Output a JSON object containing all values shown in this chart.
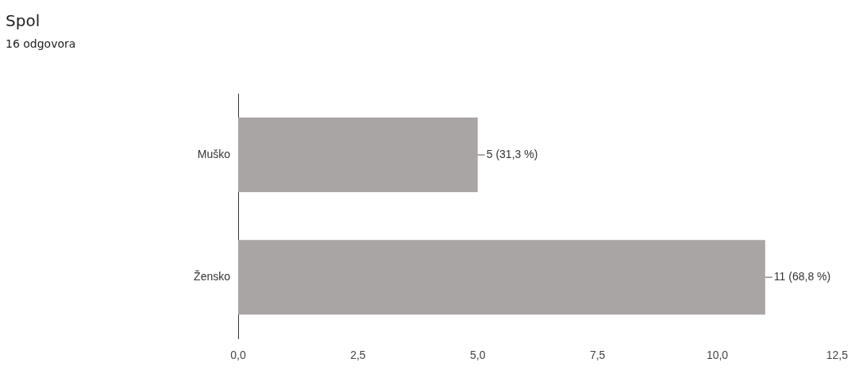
{
  "chart_data": {
    "type": "bar",
    "orientation": "horizontal",
    "title": "Spol",
    "subtitle": "16 odgovora",
    "categories": [
      "Muško",
      "Žensko"
    ],
    "values": [
      5,
      11
    ],
    "color": "#a9a5a5",
    "value_labels": [
      "5 (31,3 %)",
      "11 (68,8 %)"
    ],
    "xlim": [
      0,
      12.5
    ],
    "xticks": [
      {
        "value": 0,
        "label": "0,0"
      },
      {
        "value": 2.5,
        "label": "2,5"
      },
      {
        "value": 5,
        "label": "5,0"
      },
      {
        "value": 7.5,
        "label": "7,5"
      },
      {
        "value": 10,
        "label": "10,0"
      },
      {
        "value": 12.5,
        "label": "12,5"
      }
    ],
    "grid": false,
    "legend": false
  }
}
